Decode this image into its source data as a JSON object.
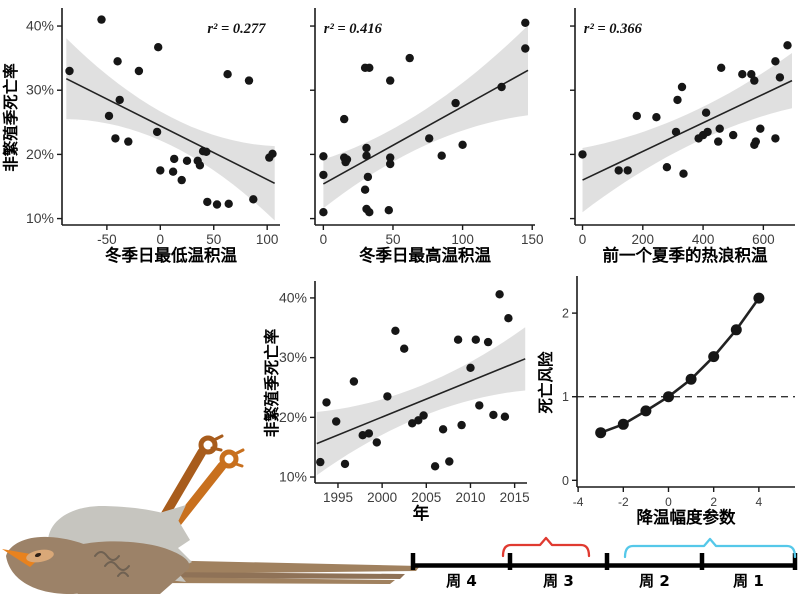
{
  "style": {
    "background": "#ffffff",
    "point_color": "#161616",
    "trend_color": "#222222",
    "ribbon_color": "#d8d8d8",
    "axis_color": "#1a1a1a",
    "tick_label_color": "#3d3d3d",
    "label_color": "#000000",
    "ref_dash_color": "#333333"
  },
  "chart_data": [
    {
      "id": "winter_min",
      "type": "scatter",
      "title": "",
      "xlabel": "冬季日最低温积温",
      "ylabel": "非繁殖季死亡率",
      "annotation": {
        "text": "r² = 0.277",
        "fx": 0.8,
        "fy": 0.07,
        "anchor": "middle"
      },
      "x_ticks": [
        -50,
        0,
        50,
        100
      ],
      "y_ticks": [
        10,
        20,
        30,
        40
      ],
      "y_tick_labels": [
        "10%",
        "20%",
        "30%",
        "40%"
      ],
      "xlim": [
        -92,
        112
      ],
      "ylim": [
        9,
        42.5
      ],
      "points": [
        [
          -85,
          33
        ],
        [
          -55,
          41
        ],
        [
          -48,
          26
        ],
        [
          -42,
          22.5
        ],
        [
          -40,
          34.5
        ],
        [
          -38,
          28.5
        ],
        [
          -30,
          22
        ],
        [
          -20,
          33
        ],
        [
          -3,
          23.5
        ],
        [
          -2,
          36.7
        ],
        [
          0,
          17.5
        ],
        [
          12,
          17.3
        ],
        [
          13,
          19.3
        ],
        [
          20,
          16
        ],
        [
          25,
          19
        ],
        [
          35,
          19
        ],
        [
          37,
          18.3
        ],
        [
          40,
          20.5
        ],
        [
          43,
          20.4
        ],
        [
          44,
          12.6
        ],
        [
          53,
          12.2
        ],
        [
          63,
          32.5
        ],
        [
          64,
          12.3
        ],
        [
          83,
          31.5
        ],
        [
          87,
          13
        ],
        [
          102,
          19.5
        ],
        [
          105,
          20.1
        ]
      ],
      "trend": {
        "x": [
          -88,
          107
        ],
        "y": [
          31.8,
          15.5
        ]
      },
      "ci_halfwidth": [
        6.3,
        2.2,
        5.8
      ],
      "point_radius": 4.2
    },
    {
      "id": "winter_max",
      "type": "scatter",
      "title": "",
      "xlabel": "冬季日最高温积温",
      "ylabel": null,
      "annotation": {
        "text": "r² = 0.416",
        "fx": 0.04,
        "fy": 0.07,
        "anchor": "start"
      },
      "x_ticks": [
        0,
        50,
        100,
        150
      ],
      "y_ticks": [
        10,
        20,
        30,
        40
      ],
      "y_tick_labels": null,
      "xlim": [
        -6,
        152
      ],
      "ylim": [
        9,
        42.5
      ],
      "points": [
        [
          0,
          19.7
        ],
        [
          0,
          16.8
        ],
        [
          0,
          11
        ],
        [
          15,
          25.5
        ],
        [
          15,
          19.5
        ],
        [
          16,
          18.8
        ],
        [
          17,
          19.2
        ],
        [
          30,
          33.5
        ],
        [
          33,
          33.5
        ],
        [
          31,
          21
        ],
        [
          31,
          19.8
        ],
        [
          32,
          16.5
        ],
        [
          30,
          14.5
        ],
        [
          31,
          11.5
        ],
        [
          33,
          11
        ],
        [
          48,
          31.5
        ],
        [
          48,
          19.5
        ],
        [
          48,
          18.5
        ],
        [
          47,
          11.3
        ],
        [
          62,
          35
        ],
        [
          76,
          22.5
        ],
        [
          85,
          19.8
        ],
        [
          95,
          28
        ],
        [
          100,
          21.5
        ],
        [
          128,
          30.5
        ],
        [
          145,
          40.5
        ],
        [
          145,
          36.5
        ]
      ],
      "trend": {
        "x": [
          0,
          147
        ],
        "y": [
          15.4,
          33.1
        ]
      },
      "ci_halfwidth": [
        3.8,
        2.8,
        7.0
      ],
      "point_radius": 4.2
    },
    {
      "id": "heatwave",
      "type": "scatter",
      "title": "",
      "xlabel": "前一个夏季的热浪积温",
      "ylabel": null,
      "annotation": {
        "text": "r² = 0.366",
        "fx": 0.04,
        "fy": 0.07,
        "anchor": "start"
      },
      "x_ticks": [
        0,
        200,
        400,
        600
      ],
      "y_ticks": [
        10,
        20,
        30,
        40
      ],
      "y_tick_labels": null,
      "xlim": [
        -25,
        705
      ],
      "ylim": [
        9,
        42.5
      ],
      "points": [
        [
          0,
          20
        ],
        [
          120,
          17.5
        ],
        [
          150,
          17.5
        ],
        [
          180,
          26
        ],
        [
          245,
          25.8
        ],
        [
          280,
          18
        ],
        [
          310,
          23.5
        ],
        [
          315,
          28.5
        ],
        [
          330,
          30.5
        ],
        [
          335,
          17
        ],
        [
          385,
          22.5
        ],
        [
          400,
          23
        ],
        [
          410,
          26.5
        ],
        [
          415,
          23.5
        ],
        [
          450,
          22
        ],
        [
          455,
          24
        ],
        [
          460,
          33.5
        ],
        [
          500,
          23
        ],
        [
          530,
          32.5
        ],
        [
          560,
          32.5
        ],
        [
          570,
          31.5
        ],
        [
          570,
          21.5
        ],
        [
          575,
          22
        ],
        [
          590,
          24
        ],
        [
          640,
          34.5
        ],
        [
          640,
          22.5
        ],
        [
          655,
          32
        ],
        [
          680,
          37
        ]
      ],
      "trend": {
        "x": [
          0,
          695
        ],
        "y": [
          16.0,
          31.5
        ]
      },
      "ci_halfwidth": [
        5.0,
        2.5,
        4.3
      ],
      "point_radius": 4.2
    },
    {
      "id": "year",
      "type": "scatter",
      "title": "",
      "xlabel": "年",
      "ylabel": "非繁殖季死亡率",
      "annotation": null,
      "x_ticks": [
        1995,
        2000,
        2005,
        2010,
        2015
      ],
      "y_ticks": [
        10,
        20,
        30,
        40
      ],
      "y_tick_labels": [
        "10%",
        "20%",
        "30%",
        "40%"
      ],
      "xlim": [
        1992.4,
        2016.4
      ],
      "ylim": [
        9,
        42.5
      ],
      "points": [
        [
          1993,
          12.5
        ],
        [
          1993.7,
          22.5
        ],
        [
          1994.8,
          19.3
        ],
        [
          1995.8,
          12.2
        ],
        [
          1996.8,
          26
        ],
        [
          1997.8,
          17
        ],
        [
          1998.5,
          17.3
        ],
        [
          1999.4,
          15.8
        ],
        [
          2000.6,
          23.5
        ],
        [
          2001.5,
          34.5
        ],
        [
          2002.5,
          31.5
        ],
        [
          2003.4,
          19
        ],
        [
          2004.1,
          19.5
        ],
        [
          2004.7,
          20.3
        ],
        [
          2006,
          11.8
        ],
        [
          2006.9,
          18
        ],
        [
          2007.6,
          12.6
        ],
        [
          2008.6,
          33
        ],
        [
          2009,
          18.7
        ],
        [
          2010,
          28.3
        ],
        [
          2010.6,
          33
        ],
        [
          2011,
          22
        ],
        [
          2012,
          32.6
        ],
        [
          2012.6,
          20.4
        ],
        [
          2013.3,
          40.6
        ],
        [
          2013.9,
          20.1
        ],
        [
          2014.3,
          36.6
        ]
      ],
      "trend": {
        "x": [
          1992.6,
          2016.2
        ],
        "y": [
          15.6,
          29.8
        ]
      },
      "ci_halfwidth": [
        5.3,
        2.6,
        5.3
      ],
      "point_radius": 4.2
    },
    {
      "id": "risk",
      "type": "line",
      "title": "",
      "xlabel": "降温幅度参数",
      "ylabel": "死亡风险",
      "annotation": null,
      "x_ticks": [
        -4,
        -2,
        0,
        2,
        4
      ],
      "y_ticks": [
        0,
        1,
        2
      ],
      "y_tick_labels": [
        "0",
        "1",
        "2"
      ],
      "xlim": [
        -4.05,
        5.6
      ],
      "ylim": [
        -0.08,
        2.42
      ],
      "points": [
        [
          -3,
          0.57
        ],
        [
          -2,
          0.67
        ],
        [
          -1,
          0.83
        ],
        [
          0,
          1.0
        ],
        [
          1,
          1.21
        ],
        [
          2,
          1.48
        ],
        [
          3,
          1.8
        ],
        [
          4,
          2.18
        ]
      ],
      "ref_line_y": 1,
      "point_radius": 5.5,
      "tick_font": 12
    }
  ],
  "timeline": {
    "weeks": [
      {
        "label": "周 4"
      },
      {
        "label": "周 3"
      },
      {
        "label": "周 2"
      },
      {
        "label": "周 1"
      }
    ],
    "red_brace": {
      "color": "#e03a30",
      "over": "周 3"
    },
    "blue_brace": {
      "color": "#55c8e9",
      "over": "周 2 周 1"
    },
    "line_color": "#000000"
  },
  "bird": {
    "belly": "#c6c5bf",
    "body": "#9c8268",
    "body_dark": "#8a6f55",
    "tail": "#a0815f",
    "tail_dark": "#8f7257",
    "beak": "#e8821e",
    "eye_patch": "#d9a878",
    "eye": "#2e2017",
    "leg_front": "#c8701e",
    "leg_back": "#a85c1c",
    "wing_marks": "#6f6152"
  }
}
